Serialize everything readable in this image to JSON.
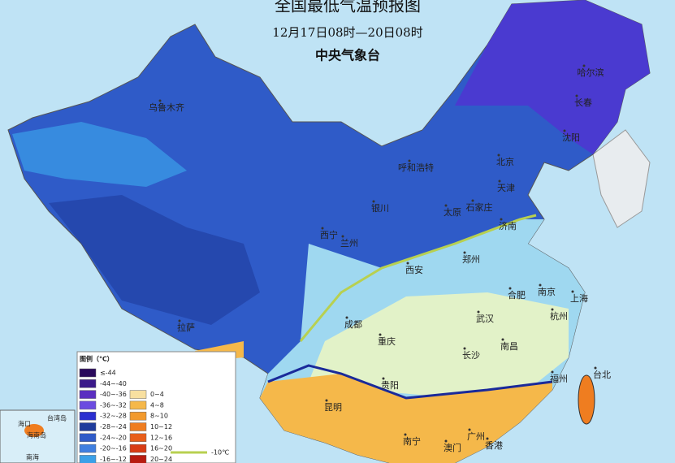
{
  "header": {
    "title": "全国最低气温预报图",
    "subtitle": "12月17日08时—20日08时",
    "agency": "中央气象台"
  },
  "cities": [
    "乌鲁木齐",
    "哈尔滨",
    "长春",
    "沈阳",
    "北京",
    "呼和浩特",
    "天津",
    "石家庄",
    "银川",
    "太原",
    "济南",
    "西宁",
    "兰州",
    "郑州",
    "西安",
    "合肥",
    "南京",
    "上海",
    "成都",
    "武汉",
    "杭州",
    "拉萨",
    "重庆",
    "长沙",
    "南昌",
    "贵阳",
    "福州",
    "台北",
    "昆明",
    "广州",
    "南宁",
    "澳门",
    "香港"
  ],
  "legend": {
    "title": "图例（℃）",
    "items": [
      {
        "label": "≤-44",
        "color": "#2a0a5c"
      },
      {
        "label": "-44~-40",
        "color": "#3b1a8a"
      },
      {
        "label": "-40~-36",
        "color": "#5a2fc0"
      },
      {
        "label": "-36~-32",
        "color": "#6b4be0"
      },
      {
        "label": "-32~-28",
        "color": "#2b2fd0"
      },
      {
        "label": "-28~-24",
        "color": "#1f3c9c"
      },
      {
        "label": "-24~-20",
        "color": "#2f5bc8"
      },
      {
        "label": "-20~-16",
        "color": "#3f7fe0"
      },
      {
        "label": "-16~-12",
        "color": "#3aa0e8"
      },
      {
        "label": "0~4",
        "color": "#f8e0a0"
      },
      {
        "label": "4~8",
        "color": "#f5b84a"
      },
      {
        "label": "8~10",
        "color": "#f29a2e"
      },
      {
        "label": "10~12",
        "color": "#ef7d20"
      },
      {
        "label": "12~16",
        "color": "#e85e1a"
      },
      {
        "label": "16~20",
        "color": "#d83c14"
      },
      {
        "label": "20~24",
        "color": "#b81c10"
      }
    ],
    "line_label": "-10℃"
  },
  "inset": {
    "labels": [
      "海口",
      "海南岛",
      "台湾岛",
      "南海"
    ]
  }
}
